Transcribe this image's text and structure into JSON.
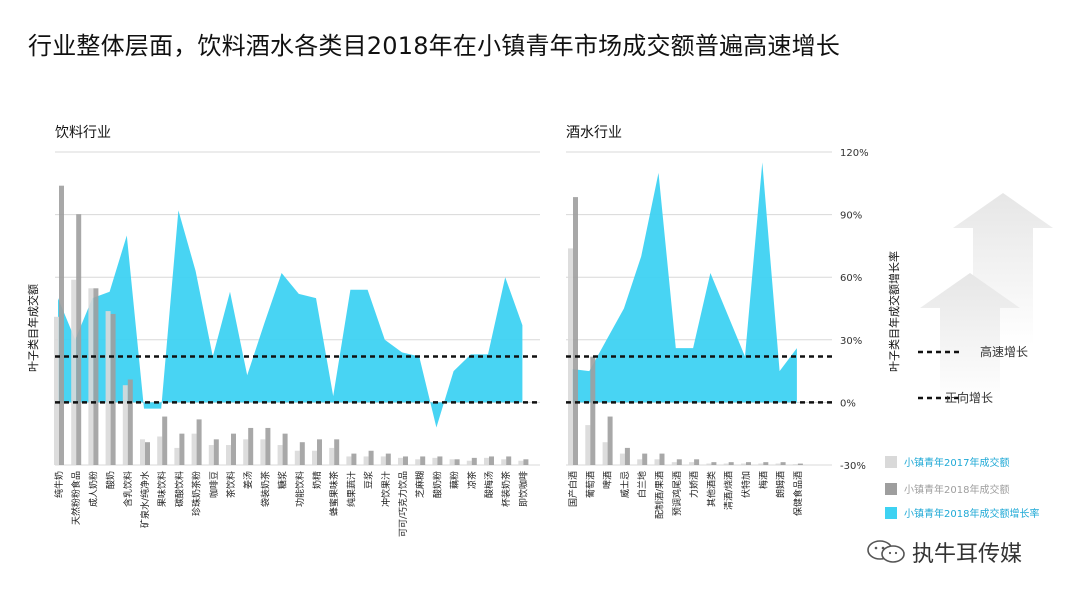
{
  "title": "行业整体层面，饮料酒水各类目2018年在小镇青年市场成交额普遍高速增长",
  "watermark": "执牛耳传媒",
  "chart_data": [
    {
      "type": "bar+area",
      "panel_title": "饮料行业",
      "ylabel": "叶子类目年成交额",
      "categories": [
        "纯牛奶",
        "天然粉粉食品",
        "成人奶粉",
        "酸奶",
        "含乳饮料",
        "矿泉水/纯净水",
        "果味饮料",
        "碳酸饮料",
        "珍珠奶茶粉",
        "咖啡豆",
        "茶饮料",
        "姜汤",
        "袋装奶茶",
        "糖浆",
        "功能饮料",
        "奶精",
        "蜂蜜果味茶",
        "纯果蔬汁",
        "豆浆",
        "冲饮果汁",
        "可可/巧克力饮品",
        "芝麻糊",
        "酸奶粉",
        "藕粉",
        "凉茶",
        "酸梅汤",
        "杯装奶茶",
        "即饮咖啡"
      ],
      "series": [
        {
          "name": "小镇青年2017年成交额",
          "color": "#d9d9d9",
          "values": [
            0.52,
            0.65,
            0.62,
            0.54,
            0.28,
            0.09,
            0.1,
            0.06,
            0.11,
            0.07,
            0.07,
            0.09,
            0.09,
            0.07,
            0.05,
            0.05,
            0.06,
            0.03,
            0.03,
            0.03,
            0.025,
            0.02,
            0.025,
            0.02,
            0.015,
            0.025,
            0.02,
            0.015
          ]
        },
        {
          "name": "小镇青年2018年成交额",
          "color": "#9e9e9e",
          "values": [
            0.98,
            0.88,
            0.62,
            0.53,
            0.3,
            0.08,
            0.17,
            0.11,
            0.16,
            0.09,
            0.11,
            0.13,
            0.13,
            0.11,
            0.08,
            0.09,
            0.09,
            0.04,
            0.05,
            0.04,
            0.03,
            0.03,
            0.03,
            0.02,
            0.025,
            0.03,
            0.03,
            0.02
          ]
        },
        {
          "name": "小镇青年2018年成交额增长率",
          "color": "#3ed2f2",
          "values": [
            50,
            30,
            50,
            53,
            80,
            -3,
            -3,
            92,
            63,
            22,
            53,
            13,
            38,
            62,
            52,
            50,
            3,
            54,
            54,
            30,
            24,
            22,
            -12,
            15,
            23,
            23,
            60,
            37
          ]
        }
      ]
    },
    {
      "type": "bar+area",
      "panel_title": "酒水行业",
      "y2label": "叶子类目年成交额增长率",
      "y2ticks": [
        "120%",
        "90%",
        "60%",
        "30%",
        "0%",
        "-30%"
      ],
      "y2lim": [
        -30,
        120
      ],
      "categories": [
        "国产白酒",
        "葡萄酒",
        "啤酒",
        "威士忌",
        "白兰地",
        "配制酒/果酒",
        "预调鸡尾酒",
        "力娇酒",
        "其他酒类",
        "清酒/烧酒",
        "伏特加",
        "梅酒",
        "朗姆酒",
        "保健食品酒"
      ],
      "series": [
        {
          "name": "小镇青年2017年成交额",
          "color": "#d9d9d9",
          "values": [
            0.76,
            0.14,
            0.08,
            0.04,
            0.02,
            0.02,
            0.01,
            0.01,
            0.005,
            0.005,
            0.005,
            0.005,
            0.005,
            0.003
          ]
        },
        {
          "name": "小镇青年2018年成交额",
          "color": "#9e9e9e",
          "values": [
            0.94,
            0.38,
            0.17,
            0.06,
            0.04,
            0.04,
            0.02,
            0.02,
            0.01,
            0.01,
            0.01,
            0.01,
            0.01,
            0.005
          ]
        },
        {
          "name": "小镇青年2018年成交额增长率",
          "color": "#3ed2f2",
          "values": [
            16,
            15,
            30,
            45,
            70,
            110,
            26,
            26,
            62,
            42,
            22,
            115,
            15,
            26
          ]
        }
      ]
    }
  ],
  "reference_lines": [
    {
      "value": 22,
      "label": "高速增长"
    },
    {
      "value": 0,
      "label": "正向增长"
    }
  ],
  "legend": [
    {
      "label": "小镇青年2017年成交额",
      "color": "#d9d9d9",
      "text_color": "#1fa9d6"
    },
    {
      "label": "小镇青年2018年成交额",
      "color": "#9e9e9e",
      "text_color": "#9e9e9e"
    },
    {
      "label": "小镇青年2018年成交额增长率",
      "color": "#3ed2f2",
      "text_color": "#1fa9d6"
    }
  ]
}
